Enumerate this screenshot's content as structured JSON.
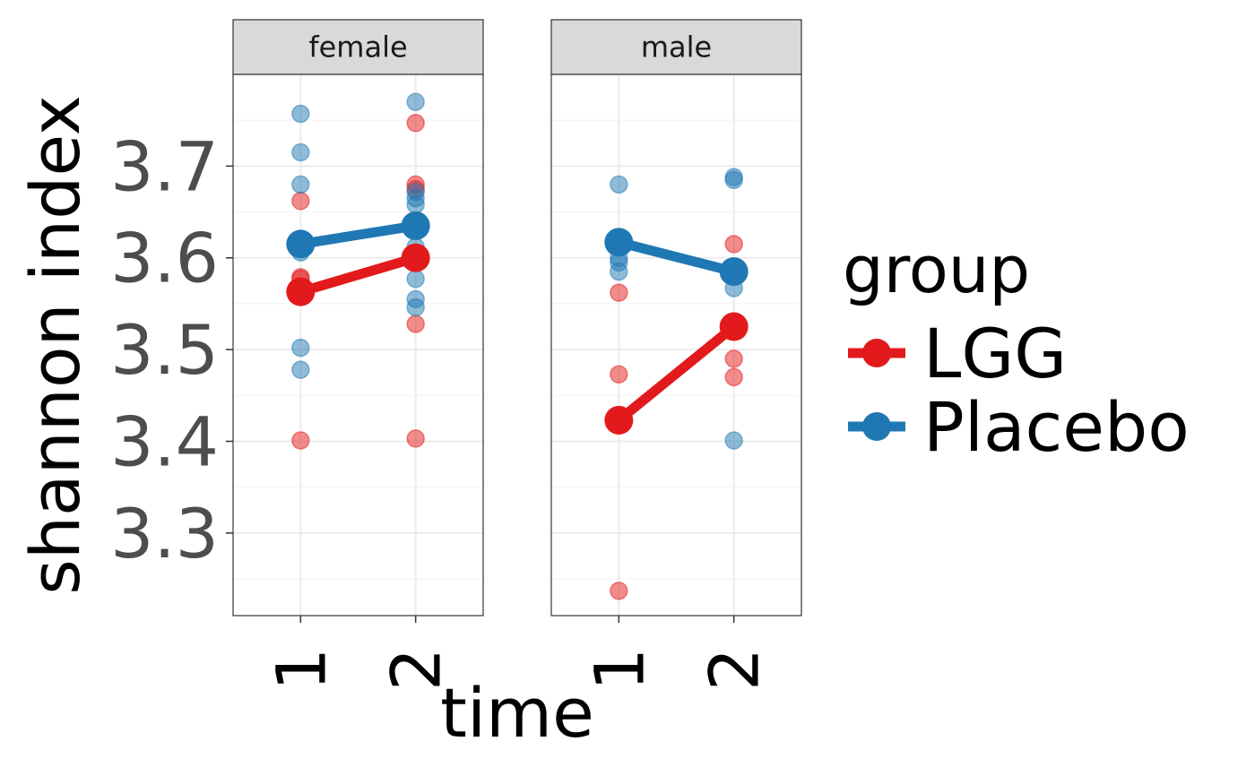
{
  "chart_data": {
    "type": "line",
    "xlabel": "time",
    "ylabel": "shannon index",
    "x_categories": [
      "1",
      "2"
    ],
    "y_ticks": [
      3.3,
      3.4,
      3.5,
      3.6,
      3.7
    ],
    "ylim": [
      3.21,
      3.8
    ],
    "grid": true,
    "legend": {
      "title": "group",
      "position": "right",
      "entries": [
        {
          "name": "LGG",
          "color": "#e31a1c"
        },
        {
          "name": "Placebo",
          "color": "#1f78b4"
        }
      ]
    },
    "facets": [
      {
        "label": "female",
        "series": [
          {
            "name": "LGG",
            "color": "#e31a1c",
            "means": [
              3.563,
              3.6
            ],
            "points": [
              [
                1,
                3.662
              ],
              [
                1,
                3.579
              ],
              [
                1,
                3.577
              ],
              [
                1,
                3.401
              ],
              [
                2,
                3.747
              ],
              [
                2,
                3.68
              ],
              [
                2,
                3.675
              ],
              [
                2,
                3.528
              ],
              [
                2,
                3.403
              ]
            ]
          },
          {
            "name": "Placebo",
            "color": "#1f78b4",
            "means": [
              3.615,
              3.635
            ],
            "points": [
              [
                1,
                3.757
              ],
              [
                1,
                3.715
              ],
              [
                1,
                3.68
              ],
              [
                1,
                3.61
              ],
              [
                1,
                3.606
              ],
              [
                1,
                3.502
              ],
              [
                1,
                3.478
              ],
              [
                2,
                3.77
              ],
              [
                2,
                3.672
              ],
              [
                2,
                3.665
              ],
              [
                2,
                3.658
              ],
              [
                2,
                3.612
              ],
              [
                2,
                3.577
              ],
              [
                2,
                3.555
              ],
              [
                2,
                3.546
              ]
            ]
          }
        ]
      },
      {
        "label": "male",
        "series": [
          {
            "name": "LGG",
            "color": "#e31a1c",
            "means": [
              3.423,
              3.525
            ],
            "points": [
              [
                1,
                3.562
              ],
              [
                1,
                3.473
              ],
              [
                1,
                3.237
              ],
              [
                2,
                3.615
              ],
              [
                2,
                3.49
              ],
              [
                2,
                3.47
              ]
            ]
          },
          {
            "name": "Placebo",
            "color": "#1f78b4",
            "means": [
              3.617,
              3.585
            ],
            "points": [
              [
                1,
                3.68
              ],
              [
                1,
                3.6
              ],
              [
                1,
                3.595
              ],
              [
                1,
                3.585
              ],
              [
                2,
                3.688
              ],
              [
                2,
                3.685
              ],
              [
                2,
                3.567
              ],
              [
                2,
                3.401
              ]
            ]
          }
        ]
      }
    ]
  }
}
